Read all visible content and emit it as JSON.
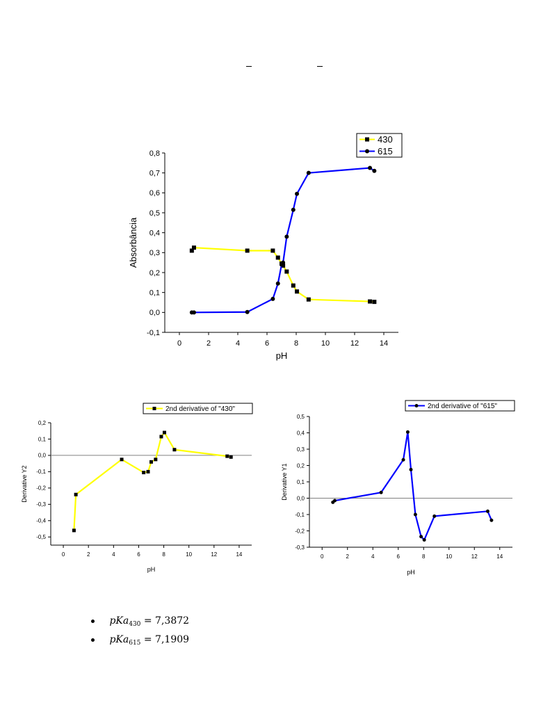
{
  "bullets": [
    {
      "symbol": "pKa",
      "subscript": "430",
      "value": "= 7,3872"
    },
    {
      "symbol": "pKa",
      "subscript": "615",
      "value": "= 7,1909"
    }
  ],
  "colors": {
    "yellow": "#ffff00",
    "blue": "#0000ff",
    "marker": "#000000",
    "zero_line": "#808080"
  },
  "chart_data": [
    {
      "type": "line",
      "xlabel": "pH",
      "ylabel": "Absorbância",
      "xlim": [
        -1,
        15
      ],
      "ylim": [
        -0.1,
        0.8
      ],
      "xticks": [
        0,
        2,
        4,
        6,
        8,
        10,
        12,
        14
      ],
      "xtick_labels": [
        "0",
        "2",
        "4",
        "6",
        "8",
        "10",
        "12",
        "14"
      ],
      "yticks": [
        -0.1,
        0,
        0.1,
        0.2,
        0.3,
        0.4,
        0.5,
        0.6,
        0.7,
        0.8
      ],
      "ytick_labels": [
        "-0,1",
        "0,0",
        "0,1",
        "0,2",
        "0,3",
        "0,4",
        "0,5",
        "0,6",
        "0,7",
        "0,8"
      ],
      "zero_line": false,
      "legend_position": "top-right",
      "series": [
        {
          "name": "430",
          "color": "#ffff00",
          "marker": "square",
          "x": [
            0.85,
            1.0,
            4.65,
            6.4,
            6.75,
            7.0,
            7.1,
            7.35,
            7.8,
            8.05,
            8.85,
            13.05,
            13.35
          ],
          "y": [
            0.31,
            0.325,
            0.31,
            0.31,
            0.275,
            0.245,
            0.235,
            0.205,
            0.135,
            0.105,
            0.065,
            0.055,
            0.053
          ]
        },
        {
          "name": "615",
          "color": "#0000ff",
          "marker": "diamond",
          "x": [
            0.85,
            1.0,
            4.65,
            6.4,
            6.75,
            7.0,
            7.1,
            7.35,
            7.8,
            8.05,
            8.85,
            13.05,
            13.35
          ],
          "y": [
            0.0,
            0.0,
            0.002,
            0.068,
            0.145,
            0.24,
            0.25,
            0.38,
            0.515,
            0.595,
            0.7,
            0.725,
            0.71
          ]
        }
      ]
    },
    {
      "type": "line",
      "xlabel": "pH",
      "ylabel": "Derivative Y2",
      "xlim": [
        -1,
        15
      ],
      "ylim": [
        -0.55,
        0.2
      ],
      "xticks": [
        0,
        2,
        4,
        6,
        8,
        10,
        12,
        14
      ],
      "xtick_labels": [
        "0",
        "2",
        "4",
        "6",
        "8",
        "10",
        "12",
        "14"
      ],
      "yticks": [
        -0.5,
        -0.4,
        -0.3,
        -0.2,
        -0.1,
        0,
        0.1,
        0.2
      ],
      "ytick_labels": [
        "-0,5",
        "-0,4",
        "-0,3",
        "-0,2",
        "-0,1",
        "0,0",
        "0,1",
        "0,2"
      ],
      "zero_line": true,
      "legend_position": "top",
      "series": [
        {
          "name": "2nd derivative of \"430\"",
          "color": "#ffff00",
          "marker": "square",
          "x": [
            0.85,
            1.0,
            4.65,
            6.4,
            6.75,
            7.0,
            7.35,
            7.8,
            8.05,
            8.85,
            13.05,
            13.35
          ],
          "y": [
            -0.46,
            -0.24,
            -0.025,
            -0.105,
            -0.1,
            -0.04,
            -0.025,
            0.115,
            0.14,
            0.035,
            -0.005,
            -0.01
          ]
        }
      ]
    },
    {
      "type": "line",
      "xlabel": "pH",
      "ylabel": "Derivative Y1",
      "xlim": [
        -1,
        15
      ],
      "ylim": [
        -0.3,
        0.5
      ],
      "xticks": [
        0,
        2,
        4,
        6,
        8,
        10,
        12,
        14
      ],
      "xtick_labels": [
        "0",
        "2",
        "4",
        "6",
        "8",
        "10",
        "12",
        "14"
      ],
      "yticks": [
        -0.3,
        -0.2,
        -0.1,
        0,
        0.1,
        0.2,
        0.3,
        0.4,
        0.5
      ],
      "ytick_labels": [
        "-0,3",
        "-0,2",
        "-0,1",
        "0,0",
        "0,1",
        "0,2",
        "0,3",
        "0,4",
        "0,5"
      ],
      "zero_line": true,
      "legend_position": "top",
      "series": [
        {
          "name": "2nd derivative of \"615\"",
          "color": "#0000ff",
          "marker": "diamond",
          "x": [
            0.85,
            1.0,
            4.65,
            6.4,
            6.75,
            7.0,
            7.35,
            7.8,
            8.05,
            8.85,
            13.05,
            13.35
          ],
          "y": [
            -0.025,
            -0.015,
            0.035,
            0.235,
            0.405,
            0.175,
            -0.1,
            -0.235,
            -0.255,
            -0.11,
            -0.08,
            -0.135
          ]
        }
      ]
    }
  ]
}
